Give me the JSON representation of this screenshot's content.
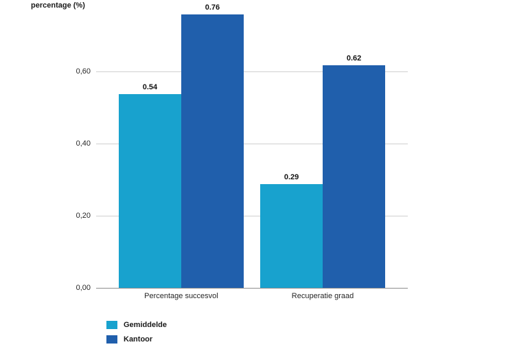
{
  "chart_data": {
    "type": "bar",
    "title": "percentage (%)",
    "categories": [
      "Percentage succesvol",
      "Recuperatie graad"
    ],
    "series": [
      {
        "name": "Gemiddelde",
        "color": "#18a2ce",
        "values": [
          0.54,
          0.29
        ],
        "labels": [
          "0.54",
          "0.29"
        ]
      },
      {
        "name": "Kantoor",
        "color": "#205fac",
        "values": [
          0.76,
          0.62
        ],
        "labels": [
          "0.76",
          "0.62"
        ]
      }
    ],
    "y_axis": {
      "label": "percentage (%)",
      "ticks": [
        {
          "value": 0.0,
          "label": "0,00"
        },
        {
          "value": 0.2,
          "label": "0,20"
        },
        {
          "value": 0.4,
          "label": "0,40"
        },
        {
          "value": 0.6,
          "label": "0,60"
        }
      ],
      "ylim": [
        0,
        0.8
      ]
    },
    "grid": true,
    "legend_position": "bottom-left",
    "colors": {
      "gridline": "#cfcfcf",
      "axis_line": "#8c8c8c",
      "text": "#262626"
    }
  }
}
